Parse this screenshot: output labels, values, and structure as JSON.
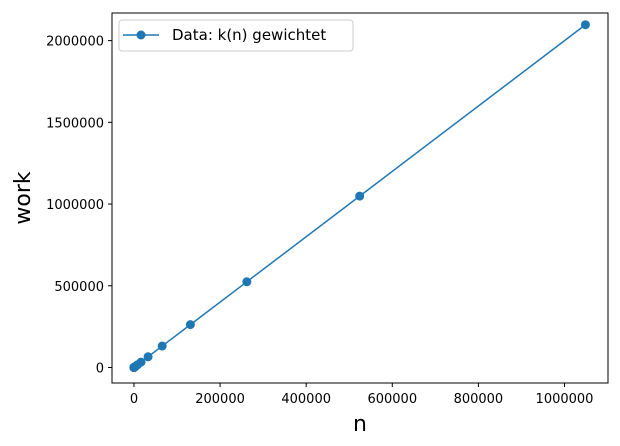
{
  "chart_data": {
    "type": "line",
    "xlabel": "n",
    "ylabel": "work",
    "xlim": [
      -51000,
      1101000
    ],
    "ylim": [
      -95000,
      2169000
    ],
    "xticks": [
      0,
      200000,
      400000,
      600000,
      800000,
      1000000
    ],
    "xtick_labels": [
      "0",
      "200000",
      "400000",
      "600000",
      "800000",
      "1000000"
    ],
    "yticks": [
      0,
      500000,
      1000000,
      1500000,
      2000000
    ],
    "ytick_labels": [
      "0",
      "500000",
      "1000000",
      "1500000",
      "2000000"
    ],
    "grid": false,
    "legend_position": "top-left",
    "series": [
      {
        "name": "Data: k(n) gewichtet",
        "color": "#1f77b4",
        "marker": "circle",
        "x": [
          1,
          2,
          4,
          8,
          16,
          32,
          64,
          128,
          256,
          512,
          1024,
          2048,
          4096,
          8192,
          16384,
          32768,
          65536,
          131072,
          262144,
          524288,
          1048576
        ],
        "y": [
          2,
          4,
          8,
          16,
          32,
          64,
          128,
          256,
          512,
          1024,
          2048,
          4096,
          8192,
          16384,
          32768,
          65536,
          131072,
          262144,
          524288,
          1048576,
          2097152
        ]
      }
    ]
  }
}
